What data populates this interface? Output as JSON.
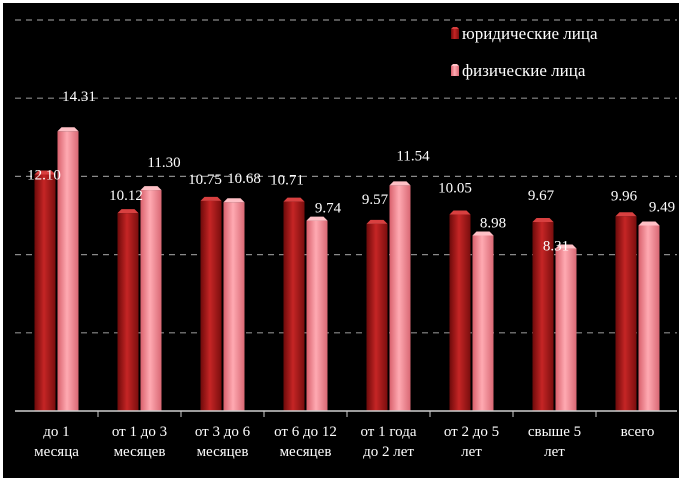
{
  "chart_data": {
    "type": "bar",
    "title": "",
    "xlabel": "",
    "ylabel": "",
    "ylim": [
      0,
      20
    ],
    "grid": true,
    "legend_position": "top-right",
    "categories": [
      [
        "до 1",
        "месяца"
      ],
      [
        "от 1 до 3",
        "месяцев"
      ],
      [
        "от 3 до 6",
        "месяцев"
      ],
      [
        "от 6 до 12",
        "месяцев"
      ],
      [
        "от 1 года",
        "до 2 лет"
      ],
      [
        "от 2 до 5",
        "лет"
      ],
      [
        "свыше 5",
        "лет"
      ],
      [
        "всего"
      ]
    ],
    "series": [
      {
        "name": "юридические лица",
        "color": "#b01c1c",
        "values": [
          12.1,
          10.12,
          10.75,
          10.71,
          9.57,
          10.05,
          9.67,
          9.96
        ],
        "labels": [
          "12.10",
          "10.12",
          "10.75",
          "10.71",
          "9.57",
          "10.05",
          "9.67",
          "9.96"
        ]
      },
      {
        "name": "физические лица",
        "color": "#f08a94",
        "values": [
          14.31,
          11.3,
          10.68,
          9.74,
          11.54,
          8.98,
          8.31,
          9.49
        ],
        "labels": [
          "14.31",
          "11.30",
          "10.68",
          "9.74",
          "11.54",
          "8.98",
          "8.31",
          "9.49"
        ]
      }
    ]
  }
}
